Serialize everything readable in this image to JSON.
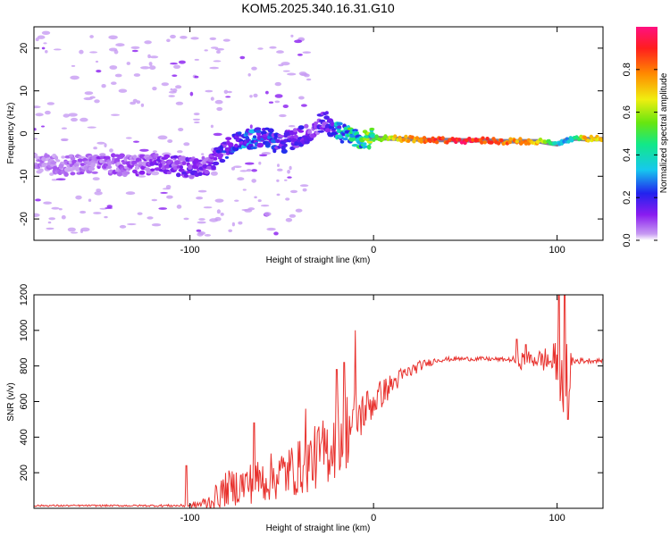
{
  "title": "KOM5.2025.340.16.31.G10",
  "colors": {
    "snr_line": "#e8322e",
    "frame": "#000000",
    "background": "#ffffff",
    "colormap": [
      "#ffffff",
      "#c79bf2",
      "#8a1cf0",
      "#2222ee",
      "#16c8ee",
      "#12e888",
      "#66e610",
      "#f0ee10",
      "#ff8a00",
      "#ff1e1e",
      "#ff1080"
    ]
  },
  "chart_data": [
    {
      "type": "heatmap",
      "name": "spectrogram",
      "xlabel": "Height of straight line (km)",
      "ylabel": "Frequency (Hz)",
      "xlim": [
        -185,
        125
      ],
      "ylim": [
        -25,
        25
      ],
      "xticks": [
        -100,
        0,
        100
      ],
      "yticks": [
        -20,
        -10,
        0,
        10,
        20
      ],
      "colorbar": {
        "label": "Normalized spectral amplitude",
        "range": [
          0,
          1
        ],
        "ticks": [
          0.0,
          0.2,
          0.4,
          0.6,
          0.8
        ]
      },
      "trace": {
        "x": [
          -185,
          -170,
          -150,
          -130,
          -115,
          -100,
          -90,
          -82,
          -75,
          -68,
          -60,
          -52,
          -45,
          -38,
          -32,
          -26,
          -20,
          -14,
          -8,
          0,
          10,
          20,
          30,
          40,
          50,
          60,
          70,
          80,
          90,
          95,
          100,
          105,
          110,
          115,
          125
        ],
        "freq": [
          -7,
          -7.5,
          -7,
          -7.5,
          -7,
          -8,
          -7.5,
          -4.5,
          -2,
          -1.5,
          -0.5,
          -2.5,
          -1.5,
          -0.5,
          1.5,
          3,
          0.5,
          -0.5,
          -1,
          -1,
          -1.2,
          -1.3,
          -1.5,
          -1.5,
          -1.6,
          -1.6,
          -1.8,
          -1.8,
          -1.8,
          -2.2,
          -2.5,
          -1.5,
          -1.2,
          -1.3,
          -1.3
        ],
        "amplitude": [
          0.12,
          0.12,
          0.15,
          0.15,
          0.18,
          0.2,
          0.18,
          0.25,
          0.3,
          0.32,
          0.3,
          0.25,
          0.25,
          0.22,
          0.2,
          0.22,
          0.35,
          0.45,
          0.5,
          0.6,
          0.75,
          0.85,
          0.9,
          0.95,
          1.0,
          0.95,
          0.9,
          0.85,
          0.8,
          0.6,
          0.45,
          0.4,
          0.5,
          0.8,
          0.8
        ]
      }
    },
    {
      "type": "line",
      "name": "snr",
      "xlabel": "Height of straight line (km)",
      "ylabel": "SNR (v/v)",
      "xlim": [
        -185,
        125
      ],
      "ylim": [
        0,
        1200
      ],
      "xticks": [
        -100,
        0,
        100
      ],
      "yticks": [
        200,
        400,
        600,
        800,
        1000,
        1200
      ],
      "envelope": {
        "x": [
          -185,
          -130,
          -100,
          -90,
          -80,
          -60,
          -40,
          -25,
          -15,
          -5,
          5,
          15,
          25,
          35,
          45,
          60,
          75,
          80,
          90,
          100,
          104,
          110,
          125
        ],
        "mean": [
          15,
          15,
          15,
          30,
          110,
          160,
          230,
          330,
          440,
          550,
          650,
          740,
          800,
          835,
          840,
          840,
          835,
          830,
          840,
          820,
          760,
          830,
          830
        ],
        "spread": [
          5,
          5,
          8,
          50,
          100,
          130,
          160,
          200,
          230,
          120,
          80,
          50,
          30,
          15,
          12,
          12,
          12,
          50,
          50,
          120,
          300,
          20,
          10
        ]
      },
      "peaks": [
        {
          "x": -102,
          "y": 240
        },
        {
          "x": -65,
          "y": 480
        },
        {
          "x": -37,
          "y": 560
        },
        {
          "x": -20,
          "y": 780
        },
        {
          "x": -16,
          "y": 820
        },
        {
          "x": -10,
          "y": 1000
        },
        {
          "x": 78,
          "y": 950
        },
        {
          "x": 83,
          "y": 920
        },
        {
          "x": 101,
          "y": 1200
        },
        {
          "x": 104,
          "y": 1200
        },
        {
          "x": 106,
          "y": 500
        }
      ]
    }
  ]
}
